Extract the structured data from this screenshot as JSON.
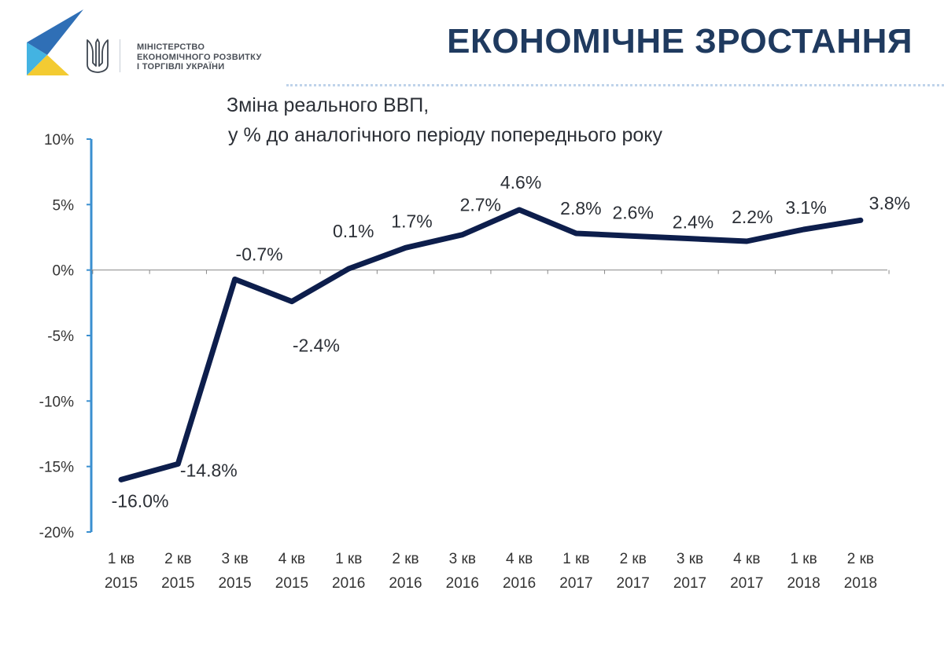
{
  "header": {
    "title": "ЕКОНОМІЧНЕ ЗРОСТАННЯ",
    "ministry_lines": [
      "МІНІСТЕРСТВО",
      "ЕКОНОМІЧНОГО РОЗВИТКУ",
      "І ТОРГІВЛІ УКРАЇНИ"
    ]
  },
  "colors": {
    "line": "#0d1e4c",
    "axis": "#3a8fd0",
    "title": "#1f3a5f",
    "logo_blue": "#2f6fb6",
    "logo_cyan": "#43b3e2",
    "logo_yellow": "#f3cb32"
  },
  "icons": [
    "ministry-logo-icon",
    "trident-icon"
  ],
  "chart_data": {
    "type": "line",
    "title": "Зміна реального ВВП,",
    "subtitle": "у % до аналогічного періоду попереднього року",
    "xlabel": "",
    "ylabel": "",
    "ylim": [
      -20,
      10
    ],
    "yticks": [
      10,
      5,
      0,
      -5,
      -10,
      -15,
      -20
    ],
    "ytick_labels": [
      "10%",
      "5%",
      "0%",
      "-5%",
      "-10%",
      "-15%",
      "-20%"
    ],
    "categories": [
      [
        "1 кв",
        "2015"
      ],
      [
        "2 кв",
        "2015"
      ],
      [
        "3 кв",
        "2015"
      ],
      [
        "4 кв",
        "2015"
      ],
      [
        "1 кв",
        "2016"
      ],
      [
        "2 кв",
        "2016"
      ],
      [
        "3 кв",
        "2016"
      ],
      [
        "4 кв",
        "2016"
      ],
      [
        "1 кв",
        "2017"
      ],
      [
        "2 кв",
        "2017"
      ],
      [
        "3 кв",
        "2017"
      ],
      [
        "4 кв",
        "2017"
      ],
      [
        "1 кв",
        "2018"
      ],
      [
        "2 кв",
        "2018"
      ]
    ],
    "values": [
      -16.0,
      -14.8,
      -0.7,
      -2.4,
      0.1,
      1.7,
      2.7,
      4.6,
      2.8,
      2.6,
      2.4,
      2.2,
      3.1,
      3.8
    ],
    "data_labels": [
      "-16.0%",
      "-14.8%",
      "-0.7%",
      "-2.4%",
      "0.1%",
      "1.7%",
      "2.7%",
      "4.6%",
      "2.8%",
      "2.6%",
      "2.4%",
      "2.2%",
      "3.1%",
      "3.8%"
    ],
    "grid": false,
    "legend": "none"
  }
}
